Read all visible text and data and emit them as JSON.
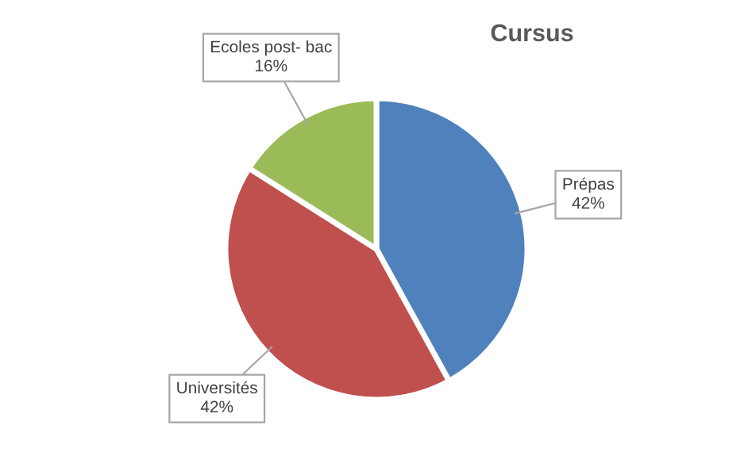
{
  "chart_data": {
    "type": "pie",
    "title": "Cursus",
    "categories": [
      "Prépas",
      "Universités",
      "Ecoles post- bac"
    ],
    "values": [
      42,
      42,
      16
    ],
    "colors": [
      "#4f81bd",
      "#c0504d",
      "#9bbb59"
    ],
    "value_labels": [
      "42%",
      "42%",
      "16%"
    ],
    "legend": false
  }
}
